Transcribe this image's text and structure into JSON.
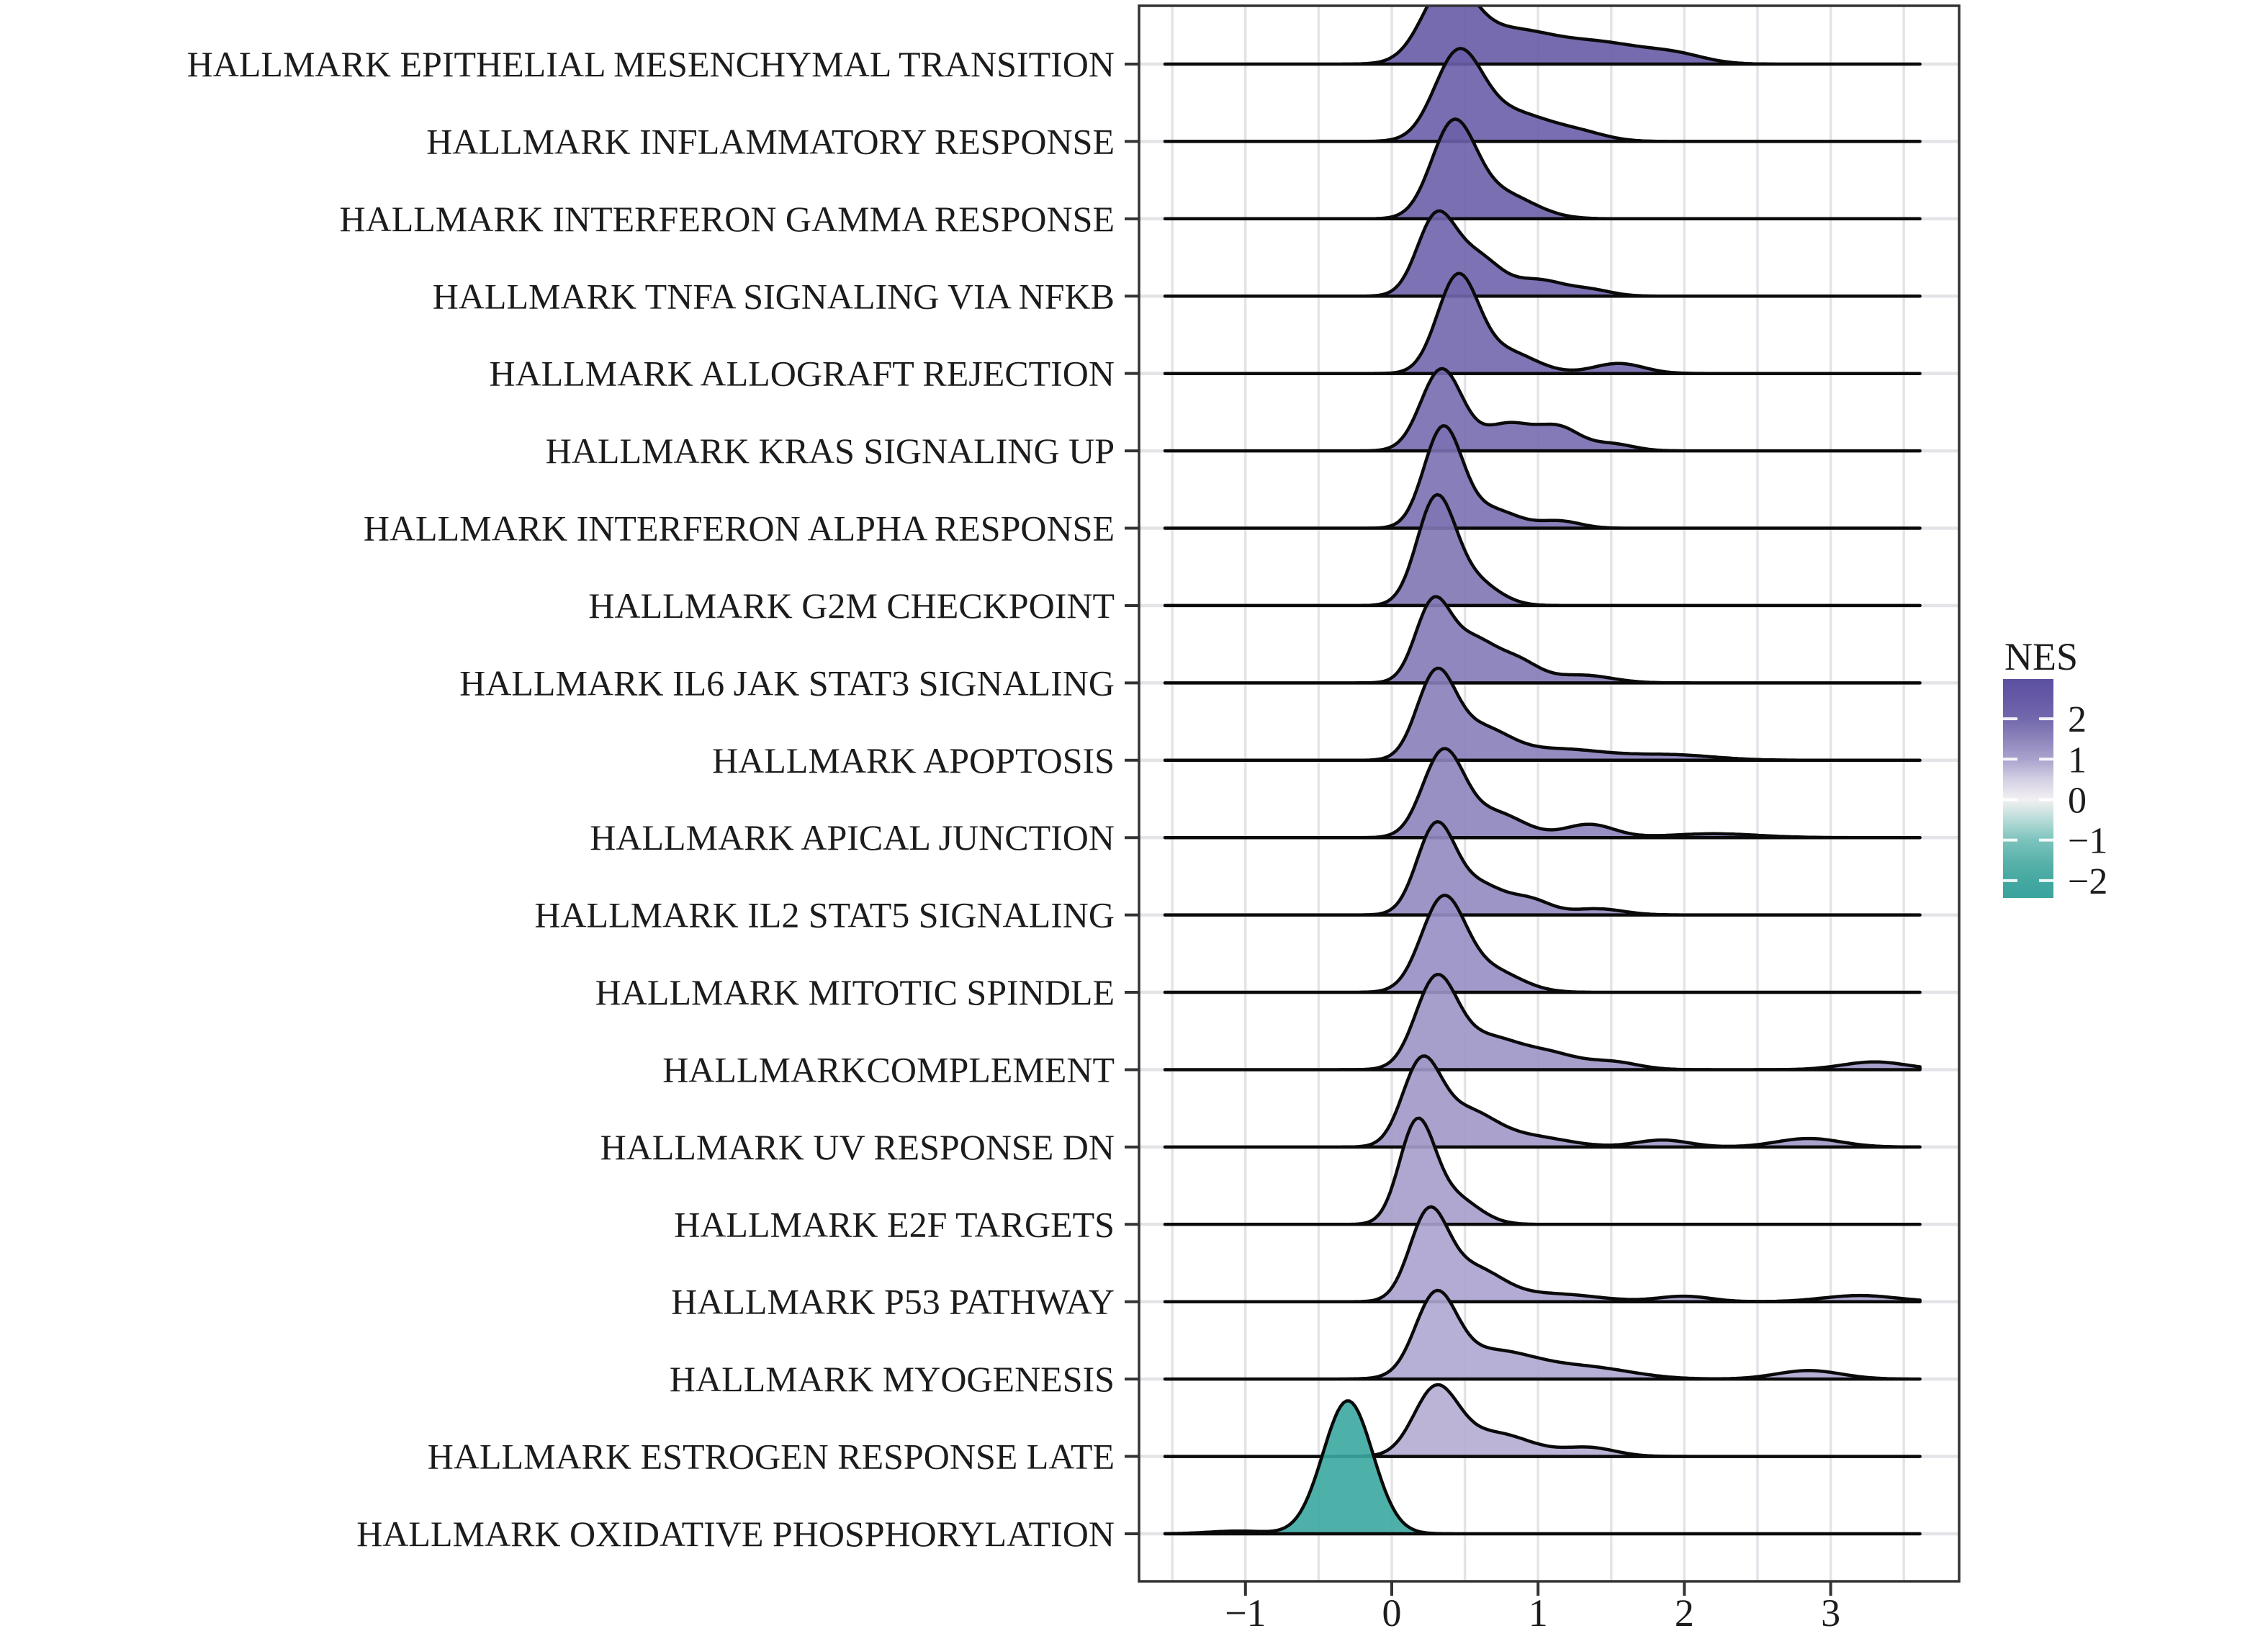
{
  "figure": {
    "background": "#ffffff",
    "panel_border_color": "#333333",
    "gridline_color": "#e5e3e8",
    "baseline_color": "#0a0a0a",
    "text_color": "#1c1c1c"
  },
  "chart_data": {
    "type": "ridgeline",
    "title": "",
    "xlabel": "",
    "ylabel": "",
    "x_tick_labels": [
      "−1",
      "0",
      "1",
      "2",
      "3"
    ],
    "x_tick_values": [
      -1,
      0,
      1,
      2,
      3
    ],
    "x_visible_range": [
      -1.73,
      3.88
    ],
    "data_x_range": [
      -1.55,
      3.61
    ],
    "grid": {
      "show": true,
      "step": 0.5,
      "from": -1.5,
      "to": 3.5
    },
    "legend": {
      "title": "NES",
      "position": "right",
      "tick_labels": [
        "2",
        "1",
        "0",
        "−1",
        "−2"
      ],
      "tick_values": [
        2,
        1,
        0,
        -1,
        -2
      ],
      "bar_top_value": 2.98,
      "bar_bottom_value": -2.43,
      "gradient_stops": [
        {
          "v": 2.98,
          "color": "#5b4fa0"
        },
        {
          "v": 2.4,
          "color": "#685ca8"
        },
        {
          "v": 2.0,
          "color": "#7268ad"
        },
        {
          "v": 1.5,
          "color": "#8d84bb"
        },
        {
          "v": 1.0,
          "color": "#aaa2cd"
        },
        {
          "v": 0.5,
          "color": "#d4d0e4"
        },
        {
          "v": 0.0,
          "color": "#f2f0f2"
        },
        {
          "v": -0.5,
          "color": "#b8dcd8"
        },
        {
          "v": -1.0,
          "color": "#7cc3bd"
        },
        {
          "v": -1.5,
          "color": "#5bb3ac"
        },
        {
          "v": -2.0,
          "color": "#44a8a1"
        },
        {
          "v": -2.43,
          "color": "#3aa49d"
        }
      ]
    },
    "rows": [
      {
        "label": "HALLMARK EPITHELIAL MESENCHYMAL TRANSITION",
        "fill": "#675ba6",
        "peaks": [
          [
            0.38,
            0.17,
            0.93
          ],
          [
            0.8,
            0.3,
            0.42
          ],
          [
            1.45,
            0.3,
            0.25
          ],
          [
            1.95,
            0.2,
            0.1
          ]
        ]
      },
      {
        "label": "HALLMARK INFLAMMATORY RESPONSE",
        "fill": "#6a5ea8",
        "peaks": [
          [
            0.45,
            0.16,
            1.02
          ],
          [
            0.8,
            0.28,
            0.38
          ],
          [
            1.3,
            0.18,
            0.08
          ]
        ]
      },
      {
        "label": "HALLMARK INTERFERON GAMMA RESPONSE",
        "fill": "#6c60a9",
        "peaks": [
          [
            0.42,
            0.15,
            1.18
          ],
          [
            0.75,
            0.22,
            0.32
          ]
        ]
      },
      {
        "label": "HALLMARK TNFA SIGNALING VIA NFKB",
        "fill": "#6f63ab",
        "peaks": [
          [
            0.3,
            0.13,
            0.98
          ],
          [
            0.58,
            0.16,
            0.5
          ],
          [
            1.0,
            0.17,
            0.2
          ],
          [
            1.35,
            0.15,
            0.08
          ]
        ]
      },
      {
        "label": "HALLMARK ALLOGRAFT REJECTION",
        "fill": "#7267ad",
        "peaks": [
          [
            0.45,
            0.14,
            1.22
          ],
          [
            0.78,
            0.2,
            0.28
          ],
          [
            1.55,
            0.17,
            0.13
          ]
        ]
      },
      {
        "label": "HALLMARK KRAS SIGNALING UP",
        "fill": "#766baf",
        "peaks": [
          [
            0.34,
            0.14,
            1.05
          ],
          [
            0.8,
            0.18,
            0.35
          ],
          [
            1.15,
            0.14,
            0.27
          ],
          [
            1.5,
            0.15,
            0.09
          ]
        ]
      },
      {
        "label": "HALLMARK INTERFERON ALPHA RESPONSE",
        "fill": "#7a70b2",
        "peaks": [
          [
            0.35,
            0.13,
            1.28
          ],
          [
            0.68,
            0.18,
            0.24
          ],
          [
            1.15,
            0.14,
            0.09
          ]
        ]
      },
      {
        "label": "HALLMARK G2M CHECKPOINT",
        "fill": "#7f75b4",
        "peaks": [
          [
            0.3,
            0.13,
            1.32
          ],
          [
            0.55,
            0.17,
            0.32
          ]
        ]
      },
      {
        "label": "HALLMARK IL6 JAK STAT3 SIGNALING",
        "fill": "#837ab7",
        "peaks": [
          [
            0.28,
            0.12,
            1.0
          ],
          [
            0.55,
            0.15,
            0.52
          ],
          [
            0.85,
            0.15,
            0.28
          ],
          [
            1.3,
            0.2,
            0.1
          ]
        ]
      },
      {
        "label": "HALLMARK APOPTOSIS",
        "fill": "#887fba",
        "peaks": [
          [
            0.3,
            0.13,
            1.05
          ],
          [
            0.6,
            0.2,
            0.4
          ],
          [
            1.15,
            0.3,
            0.14
          ],
          [
            1.9,
            0.3,
            0.07
          ]
        ]
      },
      {
        "label": "HALLMARK APICAL JUNCTION",
        "fill": "#8d84bd",
        "peaks": [
          [
            0.35,
            0.14,
            1.08
          ],
          [
            0.7,
            0.2,
            0.32
          ],
          [
            1.35,
            0.17,
            0.17
          ],
          [
            2.2,
            0.3,
            0.05
          ]
        ]
      },
      {
        "label": "HALLMARK IL2 STAT5 SIGNALING",
        "fill": "#9289c0",
        "peaks": [
          [
            0.3,
            0.13,
            1.12
          ],
          [
            0.6,
            0.17,
            0.38
          ],
          [
            0.95,
            0.14,
            0.18
          ],
          [
            1.4,
            0.18,
            0.08
          ]
        ]
      },
      {
        "label": "HALLMARK MITOTIC SPINDLE",
        "fill": "#978ec3",
        "peaks": [
          [
            0.35,
            0.15,
            1.18
          ],
          [
            0.68,
            0.2,
            0.28
          ]
        ]
      },
      {
        "label": "HALLMARKCOMPLEMENT",
        "fill": "#9c93c5",
        "peaks": [
          [
            0.3,
            0.14,
            1.08
          ],
          [
            0.65,
            0.24,
            0.42
          ],
          [
            1.1,
            0.18,
            0.16
          ],
          [
            1.5,
            0.18,
            0.1
          ],
          [
            3.3,
            0.22,
            0.1
          ]
        ]
      },
      {
        "label": "HALLMARK UV RESPONSE DN",
        "fill": "#a198c8",
        "peaks": [
          [
            0.2,
            0.13,
            1.02
          ],
          [
            0.5,
            0.2,
            0.45
          ],
          [
            0.95,
            0.25,
            0.13
          ],
          [
            1.85,
            0.18,
            0.09
          ],
          [
            2.85,
            0.22,
            0.11
          ]
        ]
      },
      {
        "label": "HALLMARK E2F TARGETS",
        "fill": "#a69dcb",
        "peaks": [
          [
            0.17,
            0.12,
            1.25
          ],
          [
            0.42,
            0.17,
            0.35
          ]
        ]
      },
      {
        "label": "HALLMARK P53 PATHWAY",
        "fill": "#aba2ce",
        "peaks": [
          [
            0.25,
            0.13,
            1.08
          ],
          [
            0.55,
            0.2,
            0.42
          ],
          [
            1.1,
            0.3,
            0.1
          ],
          [
            2.0,
            0.18,
            0.07
          ],
          [
            3.2,
            0.25,
            0.08
          ]
        ]
      },
      {
        "label": "HALLMARK MYOGENESIS",
        "fill": "#afa7d1",
        "peaks": [
          [
            0.3,
            0.14,
            0.98
          ],
          [
            0.68,
            0.3,
            0.36
          ],
          [
            1.35,
            0.3,
            0.14
          ],
          [
            2.85,
            0.22,
            0.11
          ]
        ]
      },
      {
        "label": "HALLMARK ESTROGEN RESPONSE LATE",
        "fill": "#b4acd3",
        "peaks": [
          [
            0.3,
            0.15,
            0.84
          ],
          [
            0.7,
            0.25,
            0.3
          ],
          [
            1.35,
            0.18,
            0.11
          ]
        ]
      },
      {
        "label": "HALLMARK OXIDATIVE PHOSPHORYLATION",
        "fill": "#3aa8a1",
        "peaks": [
          [
            -0.3,
            0.17,
            1.72
          ],
          [
            -1.05,
            0.2,
            0.035
          ]
        ]
      }
    ]
  }
}
